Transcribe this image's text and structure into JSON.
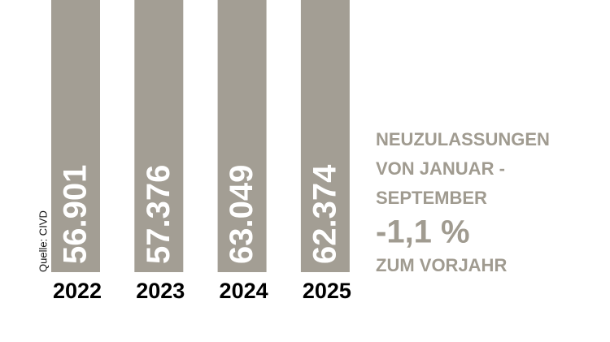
{
  "chart_data": {
    "type": "bar",
    "categories": [
      "2022",
      "2023",
      "2024",
      "2025"
    ],
    "values": [
      56901,
      57376,
      63049,
      62374
    ],
    "value_labels": [
      "56.901",
      "57.376",
      "63.049",
      "62.374"
    ],
    "color": "#a39e94",
    "ylim": [
      0,
      50000
    ],
    "headline": [
      "NEUZULASSUNGEN",
      "VON JANUAR -",
      "SEPTEMBER"
    ],
    "change": "-1,1 %",
    "change_note": "ZUM VORJAHR",
    "source": "Quelle: CIVD"
  }
}
